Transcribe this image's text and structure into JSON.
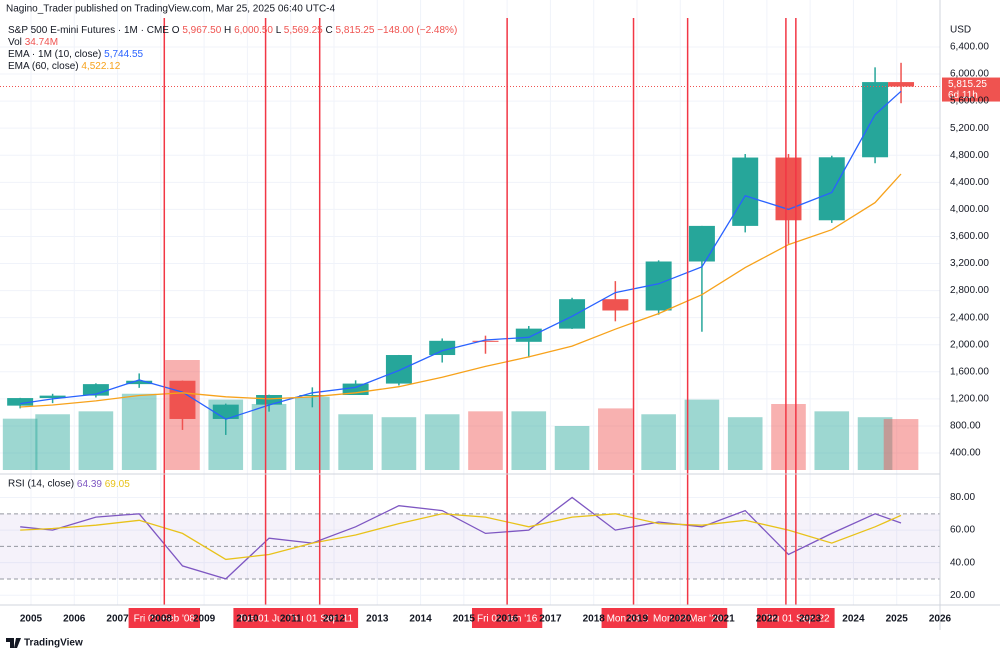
{
  "header": {
    "published": "Nagino_Trader published on TradingView.com, Mar 25, 2025 06:40 UTC-4",
    "logo": "TradingView"
  },
  "chart_data": {
    "type": "candlestick",
    "title": "S&P 500 E-mini Futures · 1M · CME",
    "ohlc": [
      {
        "key": "O",
        "value": "5,967.50"
      },
      {
        "key": "H",
        "value": "6,000.50"
      },
      {
        "key": "L",
        "value": "5,569.25"
      },
      {
        "key": "C",
        "value": "5,815.25"
      }
    ],
    "change": "−148.00 (−2.48%)",
    "currency": "USD",
    "up_color": "#26a69a",
    "down_color": "#ef5350",
    "x": [
      2004.75,
      2005.5,
      2006.5,
      2007.5,
      2008.5,
      2009.5,
      2010.5,
      2011.5,
      2012.5,
      2013.5,
      2014.5,
      2015.5,
      2016.5,
      2017.5,
      2018.5,
      2019.5,
      2020.5,
      2021.5,
      2022.5,
      2023.5,
      2024.5,
      2025.1
    ],
    "open": [
      1100,
      1212,
      1248,
      1418,
      1468,
      903,
      1115,
      1257,
      1257,
      1426,
      1848,
      2058,
      2043,
      2238,
      2673,
      2506,
      3230,
      3756,
      4766,
      3839,
      4770,
      5881
    ],
    "high": [
      1215,
      1275,
      1430,
      1576,
      1471,
      1130,
      1262,
      1370,
      1474,
      1849,
      2093,
      2134,
      2277,
      2694,
      2940,
      3247,
      3756,
      4818,
      4818,
      4793,
      6099,
      6166
    ],
    "low": [
      1060,
      1137,
      1220,
      1363,
      741,
      667,
      1011,
      1075,
      1258,
      1398,
      1737,
      1867,
      1810,
      2233,
      2346,
      2443,
      2192,
      3660,
      3491,
      3800,
      4682,
      5569
    ],
    "close": [
      1212,
      1248,
      1418,
      1468,
      903,
      1115,
      1257,
      1257,
      1426,
      1848,
      2058,
      2043,
      2238,
      2673,
      2506,
      3230,
      3756,
      4766,
      3839,
      4770,
      5881,
      5815
    ],
    "volume": {
      "name": "Vol",
      "label": "34.74M",
      "values": [
        35,
        38,
        40,
        52,
        75,
        48,
        45,
        50,
        38,
        36,
        38,
        40,
        40,
        30,
        42,
        38,
        48,
        36,
        45,
        40,
        36,
        34.74
      ]
    },
    "series": [
      {
        "name": "EMA · 1M (10, close)",
        "color": "#2962ff",
        "label": "5,744.55",
        "values": [
          1130,
          1200,
          1270,
          1480,
          1300,
          900,
          1110,
          1290,
          1370,
          1620,
          1910,
          2070,
          2110,
          2420,
          2770,
          2900,
          3150,
          4200,
          4000,
          4250,
          5400,
          5744.55
        ]
      },
      {
        "name": "EMA (60, close)",
        "color": "#f7a21b",
        "label": "4,522.12",
        "values": [
          1080,
          1110,
          1170,
          1250,
          1290,
          1230,
          1200,
          1230,
          1290,
          1380,
          1520,
          1680,
          1820,
          1980,
          2230,
          2460,
          2740,
          3140,
          3480,
          3700,
          4100,
          4522.12
        ]
      }
    ],
    "last_price": {
      "value": 5815.25,
      "label": "5,815.25",
      "countdown": "6d 11h"
    },
    "ylim": [
      149,
      6828
    ],
    "yticks": [
      {
        "value": 400,
        "label": "400.00"
      },
      {
        "value": 800,
        "label": "800.00"
      },
      {
        "value": 1200,
        "label": "1,200.00"
      },
      {
        "value": 1600,
        "label": "1,600.00"
      },
      {
        "value": 2000,
        "label": "2,000.00"
      },
      {
        "value": 2400,
        "label": "2,400.00"
      },
      {
        "value": 2800,
        "label": "2,800.00"
      },
      {
        "value": 3200,
        "label": "3,200.00"
      },
      {
        "value": 3600,
        "label": "3,600.00"
      },
      {
        "value": 4000,
        "label": "4,000.00"
      },
      {
        "value": 4400,
        "label": "4,400.00"
      },
      {
        "value": 4800,
        "label": "4,800.00"
      },
      {
        "value": 5200,
        "label": "5,200.00"
      },
      {
        "value": 5600,
        "label": "5,600.00"
      },
      {
        "value": 6000,
        "label": "6,000.00"
      },
      {
        "value": 6400,
        "label": "6,400.00"
      }
    ],
    "xlim": [
      2004.4,
      2026.0
    ],
    "xticks": [
      2005,
      2006,
      2007,
      2008,
      2009,
      2010,
      2011,
      2012,
      2013,
      2014,
      2015,
      2016,
      2017,
      2018,
      2019,
      2020,
      2021,
      2022,
      2023,
      2024,
      2025,
      2026
    ],
    "grid": true,
    "marker_color": "#f23645",
    "markers": [
      {
        "x": 2008.08,
        "label": "Fri 01 Feb '08"
      },
      {
        "x": 2010.42,
        "label": "Tue 01 Jun '"
      },
      {
        "x": 2011.67,
        "label": "Thu 01 Sep '11"
      },
      {
        "x": 2016.0,
        "label": "Fri 01 Jan '16"
      },
      {
        "x": 2018.92,
        "label": "Mon 03 Dec"
      },
      {
        "x": 2020.17,
        "label": "Mon 02 Mar '20"
      },
      {
        "x": 2022.44,
        "label": "W"
      },
      {
        "x": 2022.67,
        "label": "Thu 01 Sep '22"
      }
    ],
    "rsi": {
      "type": "line",
      "title": "RSI (14, close)",
      "ylim": [
        14,
        92
      ],
      "yticks": [
        {
          "value": 20,
          "label": "20.00"
        },
        {
          "value": 40,
          "label": "40.00"
        },
        {
          "value": 60,
          "label": "60.00"
        },
        {
          "value": 80,
          "label": "80.00"
        }
      ],
      "levels": [
        30,
        50,
        70
      ],
      "band_color": "#7e57c2",
      "series": [
        {
          "color": "#7e57c2",
          "label": "64.39",
          "values": [
            62,
            60,
            68,
            70,
            38,
            30,
            55,
            52,
            62,
            75,
            72,
            58,
            60,
            80,
            60,
            65,
            62,
            72,
            45,
            58,
            70,
            64.39
          ]
        },
        {
          "color": "#e8c21a",
          "label": "69.05",
          "values": [
            60,
            61,
            63,
            66,
            58,
            42,
            45,
            52,
            57,
            64,
            70,
            68,
            62,
            68,
            70,
            64,
            63,
            66,
            60,
            52,
            62,
            69.05
          ]
        }
      ]
    }
  }
}
